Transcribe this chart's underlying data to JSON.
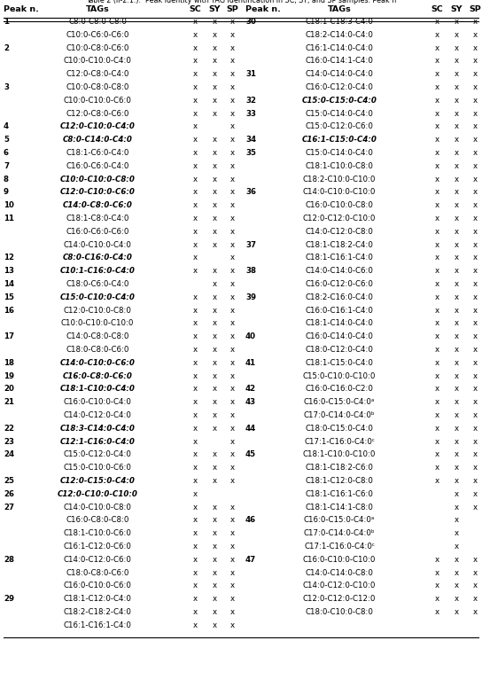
{
  "title": "Table 2 (II-2.1.).  Peak identity with TAG identification in SC, SY, and SP samples. Peak n",
  "left_data": [
    [
      "1",
      "C8:0-C8:0-C8:0",
      "x",
      "x",
      "x",
      false
    ],
    [
      "",
      "C10:0-C6:0-C6:0",
      "x",
      "x",
      "x",
      false
    ],
    [
      "2",
      "C10:0-C8:0-C6:0",
      "x",
      "x",
      "x",
      false
    ],
    [
      "",
      "C10:0-C10:0-C4:0",
      "x",
      "x",
      "x",
      false
    ],
    [
      "",
      "C12:0-C8:0-C4:0",
      "x",
      "x",
      "x",
      false
    ],
    [
      "3",
      "C10:0-C8:0-C8:0",
      "x",
      "x",
      "x",
      false
    ],
    [
      "",
      "C10:0-C10:0-C6:0",
      "x",
      "x",
      "x",
      false
    ],
    [
      "",
      "C12:0-C8:0-C6:0",
      "x",
      "x",
      "x",
      false
    ],
    [
      "4",
      "C12:0-C10:0-C4:0",
      "x",
      "",
      "x",
      true
    ],
    [
      "5",
      "C8:0-C14:0-C4:0",
      "x",
      "x",
      "x",
      true
    ],
    [
      "6",
      "C18:1-C6:0-C4:0",
      "x",
      "x",
      "x",
      false
    ],
    [
      "7",
      "C16:0-C6:0-C4:0",
      "x",
      "x",
      "x",
      false
    ],
    [
      "8",
      "C10:0-C10:0-C8:0",
      "x",
      "x",
      "x",
      true
    ],
    [
      "9",
      "C12:0-C10:0-C6:0",
      "x",
      "x",
      "x",
      true
    ],
    [
      "10",
      "C14:0-C8:0-C6:0",
      "x",
      "x",
      "x",
      true
    ],
    [
      "11",
      "C18:1-C8:0-C4:0",
      "x",
      "x",
      "x",
      false
    ],
    [
      "",
      "C16:0-C6:0-C6:0",
      "x",
      "x",
      "x",
      false
    ],
    [
      "",
      "C14:0-C10:0-C4:0",
      "x",
      "x",
      "x",
      false
    ],
    [
      "12",
      "C8:0-C16:0-C4:0",
      "x",
      "",
      "x",
      true
    ],
    [
      "13",
      "C10:1-C16:0-C4:0",
      "x",
      "x",
      "x",
      true
    ],
    [
      "14",
      "C18:0-C6:0-C4:0",
      "",
      "x",
      "x",
      false
    ],
    [
      "15",
      "C15:0-C10:0-C4:0",
      "x",
      "x",
      "x",
      true
    ],
    [
      "16",
      "C12:0-C10:0-C8:0",
      "x",
      "x",
      "x",
      false
    ],
    [
      "",
      "C10:0-C10:0-C10:0",
      "x",
      "x",
      "x",
      false
    ],
    [
      "17",
      "C14:0-C8:0-C8:0",
      "x",
      "x",
      "x",
      false
    ],
    [
      "",
      "C18:0-C8:0-C6:0",
      "x",
      "x",
      "x",
      false
    ],
    [
      "18",
      "C14:0-C10:0-C6:0",
      "x",
      "x",
      "x",
      true
    ],
    [
      "19",
      "C16:0-C8:0-C6:0",
      "x",
      "x",
      "x",
      true
    ],
    [
      "20",
      "C18:1-C10:0-C4:0",
      "x",
      "x",
      "x",
      true
    ],
    [
      "21",
      "C16:0-C10:0-C4:0",
      "x",
      "x",
      "x",
      false
    ],
    [
      "",
      "C14:0-C12:0-C4:0",
      "x",
      "x",
      "x",
      false
    ],
    [
      "22",
      "C18:3-C14:0-C4:0",
      "x",
      "x",
      "x",
      true
    ],
    [
      "23",
      "C12:1-C16:0-C4:0",
      "x",
      "",
      "x",
      true
    ],
    [
      "24",
      "C15:0-C12:0-C4:0",
      "x",
      "x",
      "x",
      false
    ],
    [
      "",
      "C15:0-C10:0-C6:0",
      "x",
      "x",
      "x",
      false
    ],
    [
      "25",
      "C12:0-C15:0-C4:0",
      "x",
      "x",
      "x",
      true
    ],
    [
      "26",
      "C12:0-C10:0-C10:0",
      "x",
      "",
      "",
      true
    ],
    [
      "27",
      "C14:0-C10:0-C8:0",
      "x",
      "x",
      "x",
      false
    ],
    [
      "",
      "C16:0-C8:0-C8:0",
      "x",
      "x",
      "x",
      false
    ],
    [
      "",
      "C18:1-C10:0-C6:0",
      "x",
      "x",
      "x",
      false
    ],
    [
      "",
      "C16:1-C12:0-C6:0",
      "x",
      "x",
      "x",
      false
    ],
    [
      "28",
      "C14:0-C12:0-C6:0",
      "x",
      "x",
      "x",
      false
    ],
    [
      "",
      "C18:0-C8:0-C6:0",
      "x",
      "x",
      "x",
      false
    ],
    [
      "",
      "C16:0-C10:0-C6:0",
      "x",
      "x",
      "x",
      false
    ],
    [
      "29",
      "C18:1-C12:0-C4:0",
      "x",
      "x",
      "x",
      false
    ],
    [
      "",
      "C18:2-C18:2-C4:0",
      "x",
      "x",
      "x",
      false
    ],
    [
      "",
      "C16:1-C16:1-C4:0",
      "x",
      "x",
      "x",
      false
    ]
  ],
  "right_data": [
    [
      "30",
      "C18:1-C18:3-C4:0",
      "x",
      "x",
      "x",
      false
    ],
    [
      "",
      "C18:2-C14:0-C4:0",
      "x",
      "x",
      "x",
      false
    ],
    [
      "",
      "C16:1-C14:0-C4:0",
      "x",
      "x",
      "x",
      false
    ],
    [
      "",
      "C16:0-C14:1-C4:0",
      "x",
      "x",
      "x",
      false
    ],
    [
      "31",
      "C14:0-C14:0-C4:0",
      "x",
      "x",
      "x",
      false
    ],
    [
      "",
      "C16:0-C12:0-C4:0",
      "x",
      "x",
      "x",
      false
    ],
    [
      "32",
      "C15:0-C15:0-C4:0",
      "x",
      "x",
      "x",
      true
    ],
    [
      "33",
      "C15:0-C14:0-C4:0",
      "x",
      "x",
      "x",
      false
    ],
    [
      "",
      "C15:0-C12:0-C6:0",
      "x",
      "x",
      "x",
      false
    ],
    [
      "34",
      "C16:1-C15:0-C4:0",
      "x",
      "x",
      "x",
      true
    ],
    [
      "35",
      "C15:0-C14:0-C4:0",
      "x",
      "x",
      "x",
      false
    ],
    [
      "",
      "C18:1-C10:0-C8:0",
      "x",
      "x",
      "x",
      false
    ],
    [
      "",
      "C18:2-C10:0-C10:0",
      "x",
      "x",
      "x",
      false
    ],
    [
      "36",
      "C14:0-C10:0-C10:0",
      "x",
      "x",
      "x",
      false
    ],
    [
      "",
      "C16:0-C10:0-C8:0",
      "x",
      "x",
      "x",
      false
    ],
    [
      "",
      "C12:0-C12:0-C10:0",
      "x",
      "x",
      "x",
      false
    ],
    [
      "",
      "C14:0-C12:0-C8:0",
      "x",
      "x",
      "x",
      false
    ],
    [
      "37",
      "C18:1-C18:2-C4:0",
      "x",
      "x",
      "x",
      false
    ],
    [
      "",
      "C18:1-C16:1-C4:0",
      "x",
      "x",
      "x",
      false
    ],
    [
      "38",
      "C14:0-C14:0-C6:0",
      "x",
      "x",
      "x",
      false
    ],
    [
      "",
      "C16:0-C12:0-C6:0",
      "x",
      "x",
      "x",
      false
    ],
    [
      "39",
      "C18:2-C16:0-C4:0",
      "x",
      "x",
      "x",
      false
    ],
    [
      "",
      "C16:0-C16:1-C4:0",
      "x",
      "x",
      "x",
      false
    ],
    [
      "",
      "C18:1-C14:0-C4:0",
      "x",
      "x",
      "x",
      false
    ],
    [
      "40",
      "C16:0-C14:0-C4:0",
      "x",
      "x",
      "x",
      false
    ],
    [
      "",
      "C18:0-C12:0-C4:0",
      "x",
      "x",
      "x",
      false
    ],
    [
      "41",
      "C18:1-C15:0-C4:0",
      "x",
      "x",
      "x",
      false
    ],
    [
      "",
      "C15:0-C10:0-C10:0",
      "x",
      "x",
      "x",
      false
    ],
    [
      "42",
      "C16:0-C16:0-C2:0",
      "x",
      "x",
      "x",
      false
    ],
    [
      "43",
      "C16:0-C15:0-C4:0ᵃ",
      "x",
      "x",
      "x",
      false
    ],
    [
      "",
      "C17:0-C14:0-C4:0ᵇ",
      "x",
      "x",
      "x",
      false
    ],
    [
      "44",
      "C18:0-C15:0-C4:0",
      "x",
      "x",
      "x",
      false
    ],
    [
      "",
      "C17:1-C16:0-C4:0ᶜ",
      "x",
      "x",
      "x",
      false
    ],
    [
      "45",
      "C18:1-C10:0-C10:0",
      "x",
      "x",
      "x",
      false
    ],
    [
      "",
      "C18:1-C18:2-C6:0",
      "x",
      "x",
      "x",
      false
    ],
    [
      "",
      "C18:1-C12:0-C8:0",
      "x",
      "x",
      "x",
      false
    ],
    [
      "",
      "C18:1-C16:1-C6:0",
      "",
      "x",
      "x",
      false
    ],
    [
      "",
      "C18:1-C14:1-C8:0",
      "",
      "x",
      "x",
      false
    ],
    [
      "46",
      "C16:0-C15:0-C4:0ᵃ",
      "",
      "x",
      "",
      false
    ],
    [
      "",
      "C17:0-C14:0-C4:0ᵇ",
      "",
      "x",
      "",
      false
    ],
    [
      "",
      "C17:1-C16:0-C4:0ᶜ",
      "",
      "x",
      "",
      false
    ],
    [
      "47",
      "C16:0-C10:0-C10:0",
      "x",
      "x",
      "x",
      false
    ],
    [
      "",
      "C14:0-C14:0-C8:0",
      "x",
      "x",
      "x",
      false
    ],
    [
      "",
      "C14:0-C12:0-C10:0",
      "x",
      "x",
      "x",
      false
    ],
    [
      "",
      "C12:0-C12:0-C12:0",
      "x",
      "x",
      "x",
      false
    ],
    [
      "",
      "C18:0-C10:0-C8:0",
      "x",
      "x",
      "x",
      false
    ]
  ],
  "bg_color": "#ffffff"
}
